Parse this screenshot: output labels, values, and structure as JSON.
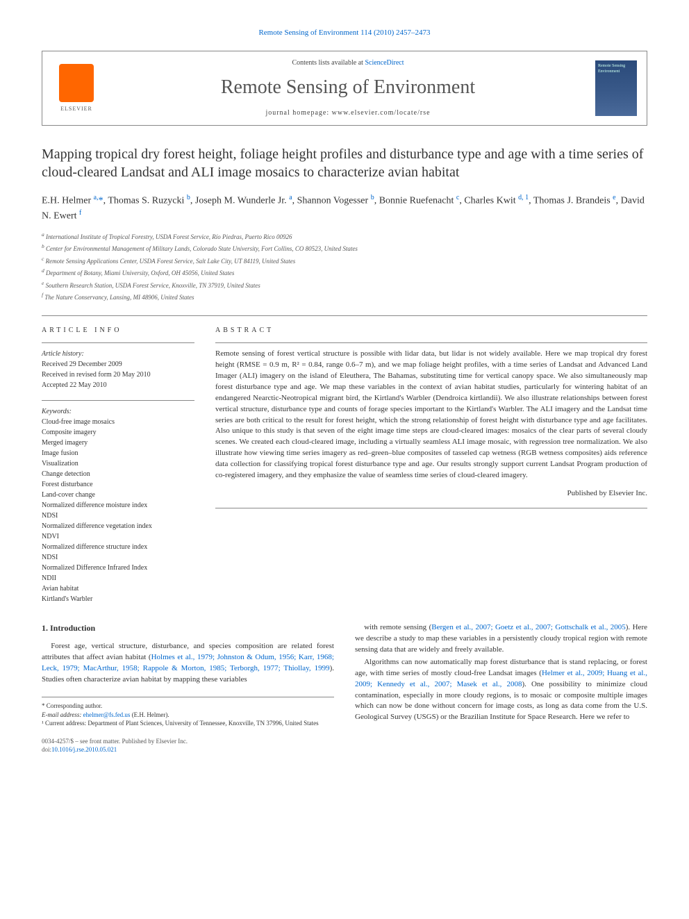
{
  "journal_header_link": "Remote Sensing of Environment 114 (2010) 2457–2473",
  "header": {
    "contents_prefix": "Contents lists available at ",
    "contents_link": "ScienceDirect",
    "journal_name": "Remote Sensing of Environment",
    "homepage_prefix": "journal homepage: ",
    "homepage_url": "www.elsevier.com/locate/rse",
    "elsevier_label": "ELSEVIER",
    "cover_text": "Remote Sensing Environment"
  },
  "title": "Mapping tropical dry forest height, foliage height profiles and disturbance type and age with a time series of cloud-cleared Landsat and ALI image mosaics to characterize avian habitat",
  "authors_html": "E.H. Helmer <sup>a,</sup><span class='corr'>*</span>, Thomas S. Ruzycki <sup>b</sup>, Joseph M. Wunderle Jr. <sup>a</sup>, Shannon Vogesser <sup>b</sup>, Bonnie Ruefenacht <sup>c</sup>, Charles Kwit <sup>d, 1</sup>, Thomas J. Brandeis <sup>e</sup>, David N. Ewert <sup>f</sup>",
  "affiliations": [
    "a International Institute of Tropical Forestry, USDA Forest Service, Río Piedras, Puerto Rico 00926",
    "b Center for Environmental Management of Military Lands, Colorado State University, Fort Collins, CO 80523, United States",
    "c Remote Sensing Applications Center, USDA Forest Service, Salt Lake City, UT 84119, United States",
    "d Department of Botany, Miami University, Oxford, OH 45056, United States",
    "e Southern Research Station, USDA Forest Service, Knoxville, TN 37919, United States",
    "f The Nature Conservancy, Lansing, MI 48906, United States"
  ],
  "article_info": {
    "heading": "article info",
    "history_label": "Article history:",
    "history": [
      "Received 29 December 2009",
      "Received in revised form 20 May 2010",
      "Accepted 22 May 2010"
    ],
    "keywords_label": "Keywords:",
    "keywords": [
      "Cloud-free image mosaics",
      "Composite imagery",
      "Merged imagery",
      "Image fusion",
      "Visualization",
      "Change detection",
      "Forest disturbance",
      "Land-cover change",
      "Normalized difference moisture index",
      "NDSI",
      "Normalized difference vegetation index",
      "NDVI",
      "Normalized difference structure index",
      "NDSI",
      "Normalized Difference Infrared Index",
      "NDII",
      "Avian habitat",
      "Kirtland's Warbler"
    ]
  },
  "abstract": {
    "heading": "abstract",
    "text": "Remote sensing of forest vertical structure is possible with lidar data, but lidar is not widely available. Here we map tropical dry forest height (RMSE = 0.9 m, R² = 0.84, range 0.6–7 m), and we map foliage height profiles, with a time series of Landsat and Advanced Land Imager (ALI) imagery on the island of Eleuthera, The Bahamas, substituting time for vertical canopy space. We also simultaneously map forest disturbance type and age. We map these variables in the context of avian habitat studies, particularly for wintering habitat of an endangered Nearctic-Neotropical migrant bird, the Kirtland's Warbler (Dendroica kirtlandii). We also illustrate relationships between forest vertical structure, disturbance type and counts of forage species important to the Kirtland's Warbler. The ALI imagery and the Landsat time series are both critical to the result for forest height, which the strong relationship of forest height with disturbance type and age facilitates. Also unique to this study is that seven of the eight image time steps are cloud-cleared images: mosaics of the clear parts of several cloudy scenes. We created each cloud-cleared image, including a virtually seamless ALI image mosaic, with regression tree normalization. We also illustrate how viewing time series imagery as red–green–blue composites of tasseled cap wetness (RGB wetness composites) aids reference data collection for classifying tropical forest disturbance type and age. Our results strongly support current Landsat Program production of co-registered imagery, and they emphasize the value of seamless time series of cloud-cleared imagery.",
    "published_by": "Published by Elsevier Inc."
  },
  "intro": {
    "heading": "1. Introduction",
    "para1_pre": "Forest age, vertical structure, disturbance, and species composition are related forest attributes that affect avian habitat (",
    "para1_ref": "Holmes et al., 1979; Johnston & Odum, 1956; Karr, 1968; Leck, 1979; MacArthur, 1958; Rappole & Morton, 1985; Terborgh, 1977; Thiollay, 1999",
    "para1_post": "). Studies often characterize avian habitat by mapping these variables",
    "para2_pre": "with remote sensing (",
    "para2_ref": "Bergen et al., 2007; Goetz et al., 2007; Gottschalk et al., 2005",
    "para2_post": "). Here we describe a study to map these variables in a persistently cloudy tropical region with remote sensing data that are widely and freely available.",
    "para3_pre": "Algorithms can now automatically map forest disturbance that is stand replacing, or forest age, with time series of mostly cloud-free Landsat images (",
    "para3_ref": "Helmer et al., 2009; Huang et al., 2009; Kennedy et al., 2007; Masek et al., 2008",
    "para3_post": "). One possibility to minimize cloud contamination, especially in more cloudy regions, is to mosaic or composite multiple images which can now be done without concern for image costs, as long as data come from the U.S. Geological Survey (USGS) or the Brazilian Institute for Space Research. Here we refer to"
  },
  "footnotes": {
    "corr_label": "* Corresponding author.",
    "email_label": "E-mail address: ",
    "email": "ehelmer@fs.fed.us",
    "email_person": " (E.H. Helmer).",
    "note1": "¹ Current address: Department of Plant Sciences, University of Tennessee, Knoxville, TN 37996, United States"
  },
  "footer": {
    "line1": "0034-4257/$ – see front matter. Published by Elsevier Inc.",
    "doi_prefix": "doi:",
    "doi": "10.1016/j.rse.2010.05.021"
  },
  "colors": {
    "link": "#0066cc",
    "rule": "#888888",
    "elsevier_orange": "#ff6600",
    "cover_bg": "#2a4a7a"
  }
}
